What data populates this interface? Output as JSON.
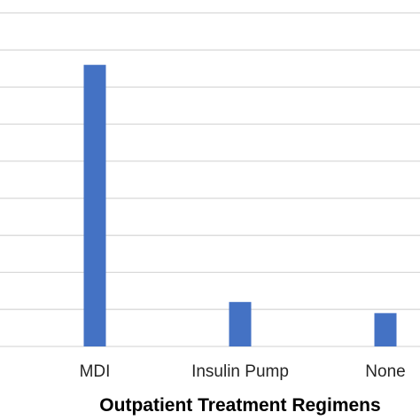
{
  "chart_data": {
    "type": "bar",
    "categories": [
      "MDI",
      "Insulin Pump",
      "None"
    ],
    "values": [
      76,
      12,
      9
    ],
    "xlabel": "Outpatient Treatment Regimens",
    "ylim": [
      0,
      93.5
    ],
    "grid": true,
    "gridline_values": [
      10,
      20,
      30,
      40,
      50,
      60,
      70,
      80,
      90
    ],
    "bar_color": "#4472c4",
    "gridline_color": "#d9d9d9",
    "legend": "none"
  }
}
